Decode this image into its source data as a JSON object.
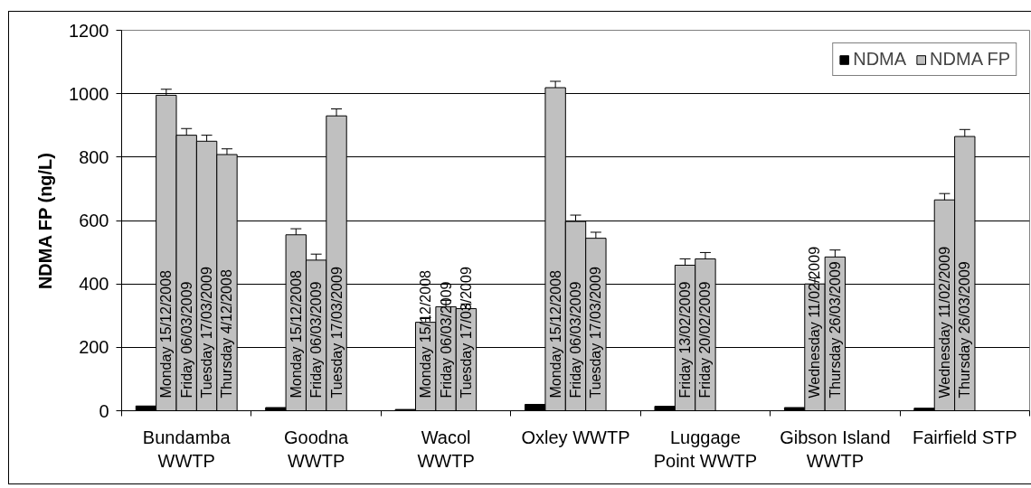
{
  "chart_data": {
    "type": "bar",
    "ylabel": "NDMA FP (ng/L)",
    "categories": [
      "Bundamba\nWWTP",
      "Goodna\nWWTP",
      "Wacol\nWWTP",
      "Oxley WWTP",
      "Luggage\nPoint WWTP",
      "Gibson Island\nWWTP",
      "Fairfield STP"
    ],
    "series": [
      {
        "name": "NDMA",
        "color": "#000000",
        "values": [
          15,
          10,
          4,
          20,
          14,
          10,
          8
        ]
      },
      {
        "name": "NDMA FP",
        "color": "#c0c0c0",
        "values": [
          995,
          555,
          279,
          1019,
          459,
          400,
          665
        ],
        "errors": [
          19,
          19,
          15,
          20,
          20,
          19,
          20
        ],
        "value_labels": [
          "Monday  15/12/2008",
          "Monday  15/12/2008",
          "Monday  15/12/2008",
          "Monday  15/12/2008",
          "Friday  13/02/2009",
          "Wednesday  11/02/2009",
          "Wednesday  11/02/2009"
        ]
      },
      {
        "color": "#c0c0c0",
        "values": [
          869,
          475,
          328,
          597,
          479,
          485,
          865
        ],
        "errors": [
          21,
          19,
          20,
          20,
          20,
          22,
          22
        ],
        "value_labels": [
          "Friday  06/03/2009",
          "Friday  06/03/2009",
          "Friday  06/03/2009",
          "Friday  06/03/2009",
          "Friday  20/02/2009",
          "Thursday  26/03/2009",
          "Thursday  26/03/2009"
        ]
      },
      {
        "color": "#c0c0c0",
        "values": [
          850,
          930,
          322,
          544,
          null,
          null,
          null
        ],
        "errors": [
          19,
          22,
          15,
          19,
          null,
          null,
          null
        ],
        "value_labels": [
          "Tuesday 17/03/2009",
          "Tuesday 17/03/2009",
          "Tuesday 17/03/2009",
          "Tuesday 17/03/2009",
          null,
          null,
          null
        ]
      },
      {
        "color": "#c0c0c0",
        "values": [
          808,
          null,
          null,
          null,
          null,
          null,
          null
        ],
        "errors": [
          18,
          null,
          null,
          null,
          null,
          null,
          null
        ],
        "value_labels": [
          "Thursday  4/12/2008",
          null,
          null,
          null,
          null,
          null,
          null
        ]
      }
    ],
    "ylim": [
      0,
      1200
    ],
    "yticks": [
      0,
      200,
      400,
      600,
      800,
      1000,
      1200
    ],
    "grid": "y",
    "legend": "top right"
  }
}
